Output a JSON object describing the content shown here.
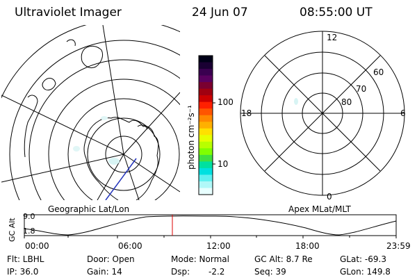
{
  "header": {
    "instrument": "Ultraviolet Imager",
    "date": "24 Jun 07",
    "time": "08:55:00 UT"
  },
  "left_panel": {
    "caption": "Geographic Lat/Lon"
  },
  "right_panel": {
    "caption": "Apex MLat/MLT",
    "mlt_labels": [
      "12",
      "18",
      "6",
      "0"
    ],
    "mlat_labels": [
      "60",
      "70",
      "80"
    ]
  },
  "colorbar": {
    "unit_label": "photon cm⁻²s⁻¹",
    "tick_labels": [
      "100",
      "10"
    ],
    "colors": [
      "#000018",
      "#1a0033",
      "#3a0050",
      "#5a0060",
      "#7a0030",
      "#a00010",
      "#cc0000",
      "#ff2000",
      "#ff5500",
      "#ff8800",
      "#ffb000",
      "#ffe000",
      "#e6ff00",
      "#b8ff00",
      "#80ff00",
      "#40e040",
      "#00e0a0",
      "#00e0e0",
      "#60f0f0",
      "#b0f8f8",
      "#e8ffff"
    ]
  },
  "altitude_plot": {
    "ylabel": "GC Alt",
    "ytick_labels": [
      "9.0",
      "1.8"
    ],
    "xtick_labels": [
      "00:00",
      "06:00",
      "12:00",
      "18:00",
      "23:59"
    ]
  },
  "footer": {
    "flt": "Flt: LBHL",
    "ip": "IP: 36.0",
    "door": "Door: Open",
    "gain": "Gain: 14",
    "mode": "Mode: Normal",
    "dsp_label": "Dsp:",
    "dsp_value": "-2.2",
    "gc_alt": "GC Alt: 8.7 Re",
    "seq": "Seq: 39",
    "glat": "GLat: -69.3",
    "glon": "GLon: 149.8"
  }
}
